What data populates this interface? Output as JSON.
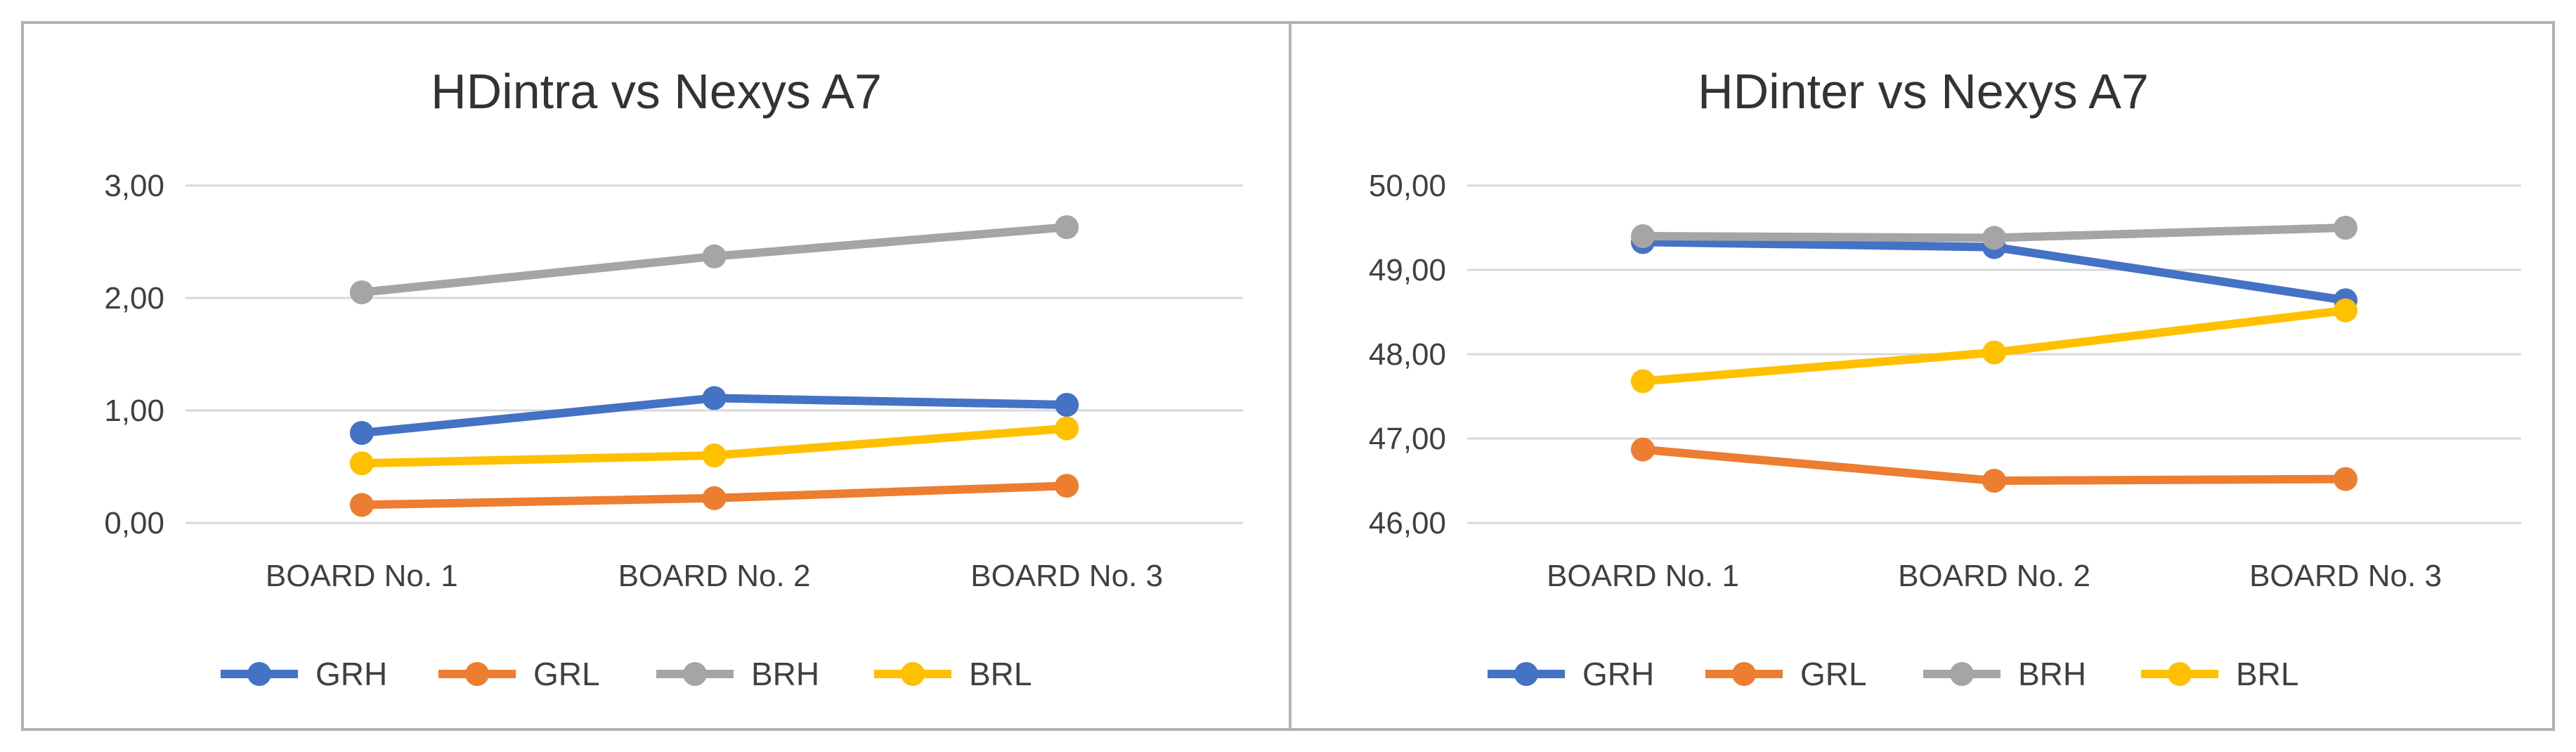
{
  "colors": {
    "GRH": "#4472c4",
    "GRL": "#ed7d31",
    "BRH": "#a5a5a5",
    "BRL": "#ffc000",
    "grid": "#d9d9d9",
    "border": "#b2b2b2"
  },
  "chart_data": [
    {
      "type": "line",
      "title": "HDintra vs Nexys A7",
      "categories": [
        "BOARD No. 1",
        "BOARD No. 2",
        "BOARD No. 3"
      ],
      "yticks": [
        "0,00",
        "1,00",
        "2,00",
        "3,00"
      ],
      "ylim": [
        0,
        3
      ],
      "grid": true,
      "legend_position": "bottom",
      "series": [
        {
          "name": "GRH",
          "values": [
            0.8,
            1.11,
            1.05
          ]
        },
        {
          "name": "GRL",
          "values": [
            0.16,
            0.22,
            0.33
          ]
        },
        {
          "name": "BRH",
          "values": [
            2.05,
            2.37,
            2.63
          ]
        },
        {
          "name": "BRL",
          "values": [
            0.53,
            0.6,
            0.84
          ]
        }
      ]
    },
    {
      "type": "line",
      "title": "HDinter vs Nexys A7",
      "categories": [
        "BOARD No. 1",
        "BOARD No. 2",
        "BOARD No. 3"
      ],
      "yticks": [
        "46,00",
        "47,00",
        "48,00",
        "49,00",
        "50,00"
      ],
      "ylim": [
        46,
        50
      ],
      "grid": true,
      "legend_position": "bottom",
      "series": [
        {
          "name": "GRH",
          "values": [
            49.33,
            49.27,
            48.64
          ]
        },
        {
          "name": "GRL",
          "values": [
            46.87,
            46.5,
            46.52
          ]
        },
        {
          "name": "BRH",
          "values": [
            49.4,
            49.38,
            49.5
          ]
        },
        {
          "name": "BRL",
          "values": [
            47.68,
            48.02,
            48.52
          ]
        }
      ]
    }
  ]
}
